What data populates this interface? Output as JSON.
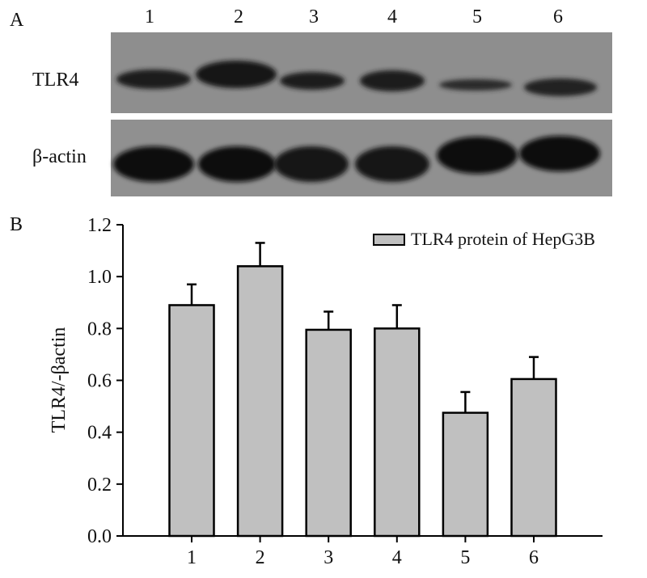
{
  "panel_a": {
    "label": "A",
    "lanes": [
      "1",
      "2",
      "3",
      "4",
      "5",
      "6"
    ],
    "rows": [
      "TLR4",
      "β-actin"
    ]
  },
  "chart_data": {
    "type": "bar",
    "label": "B",
    "y_label": "TLR4/-βactin",
    "categories": [
      "1",
      "2",
      "3",
      "4",
      "5",
      "6"
    ],
    "series": [
      {
        "name": "TLR4 protein of HepG3B",
        "color": "#c0c0c0",
        "values": [
          0.89,
          1.04,
          0.795,
          0.8,
          0.475,
          0.605
        ],
        "errors": [
          0.08,
          0.09,
          0.07,
          0.09,
          0.08,
          0.085
        ]
      }
    ],
    "ylim": [
      0,
      1.2
    ],
    "yticks": [
      {
        "value": 0,
        "label": "0.0"
      },
      0.2,
      0.4,
      0.6,
      0.8,
      {
        "value": 1,
        "label": "1.0"
      },
      1.2
    ],
    "legend": "top-right"
  }
}
